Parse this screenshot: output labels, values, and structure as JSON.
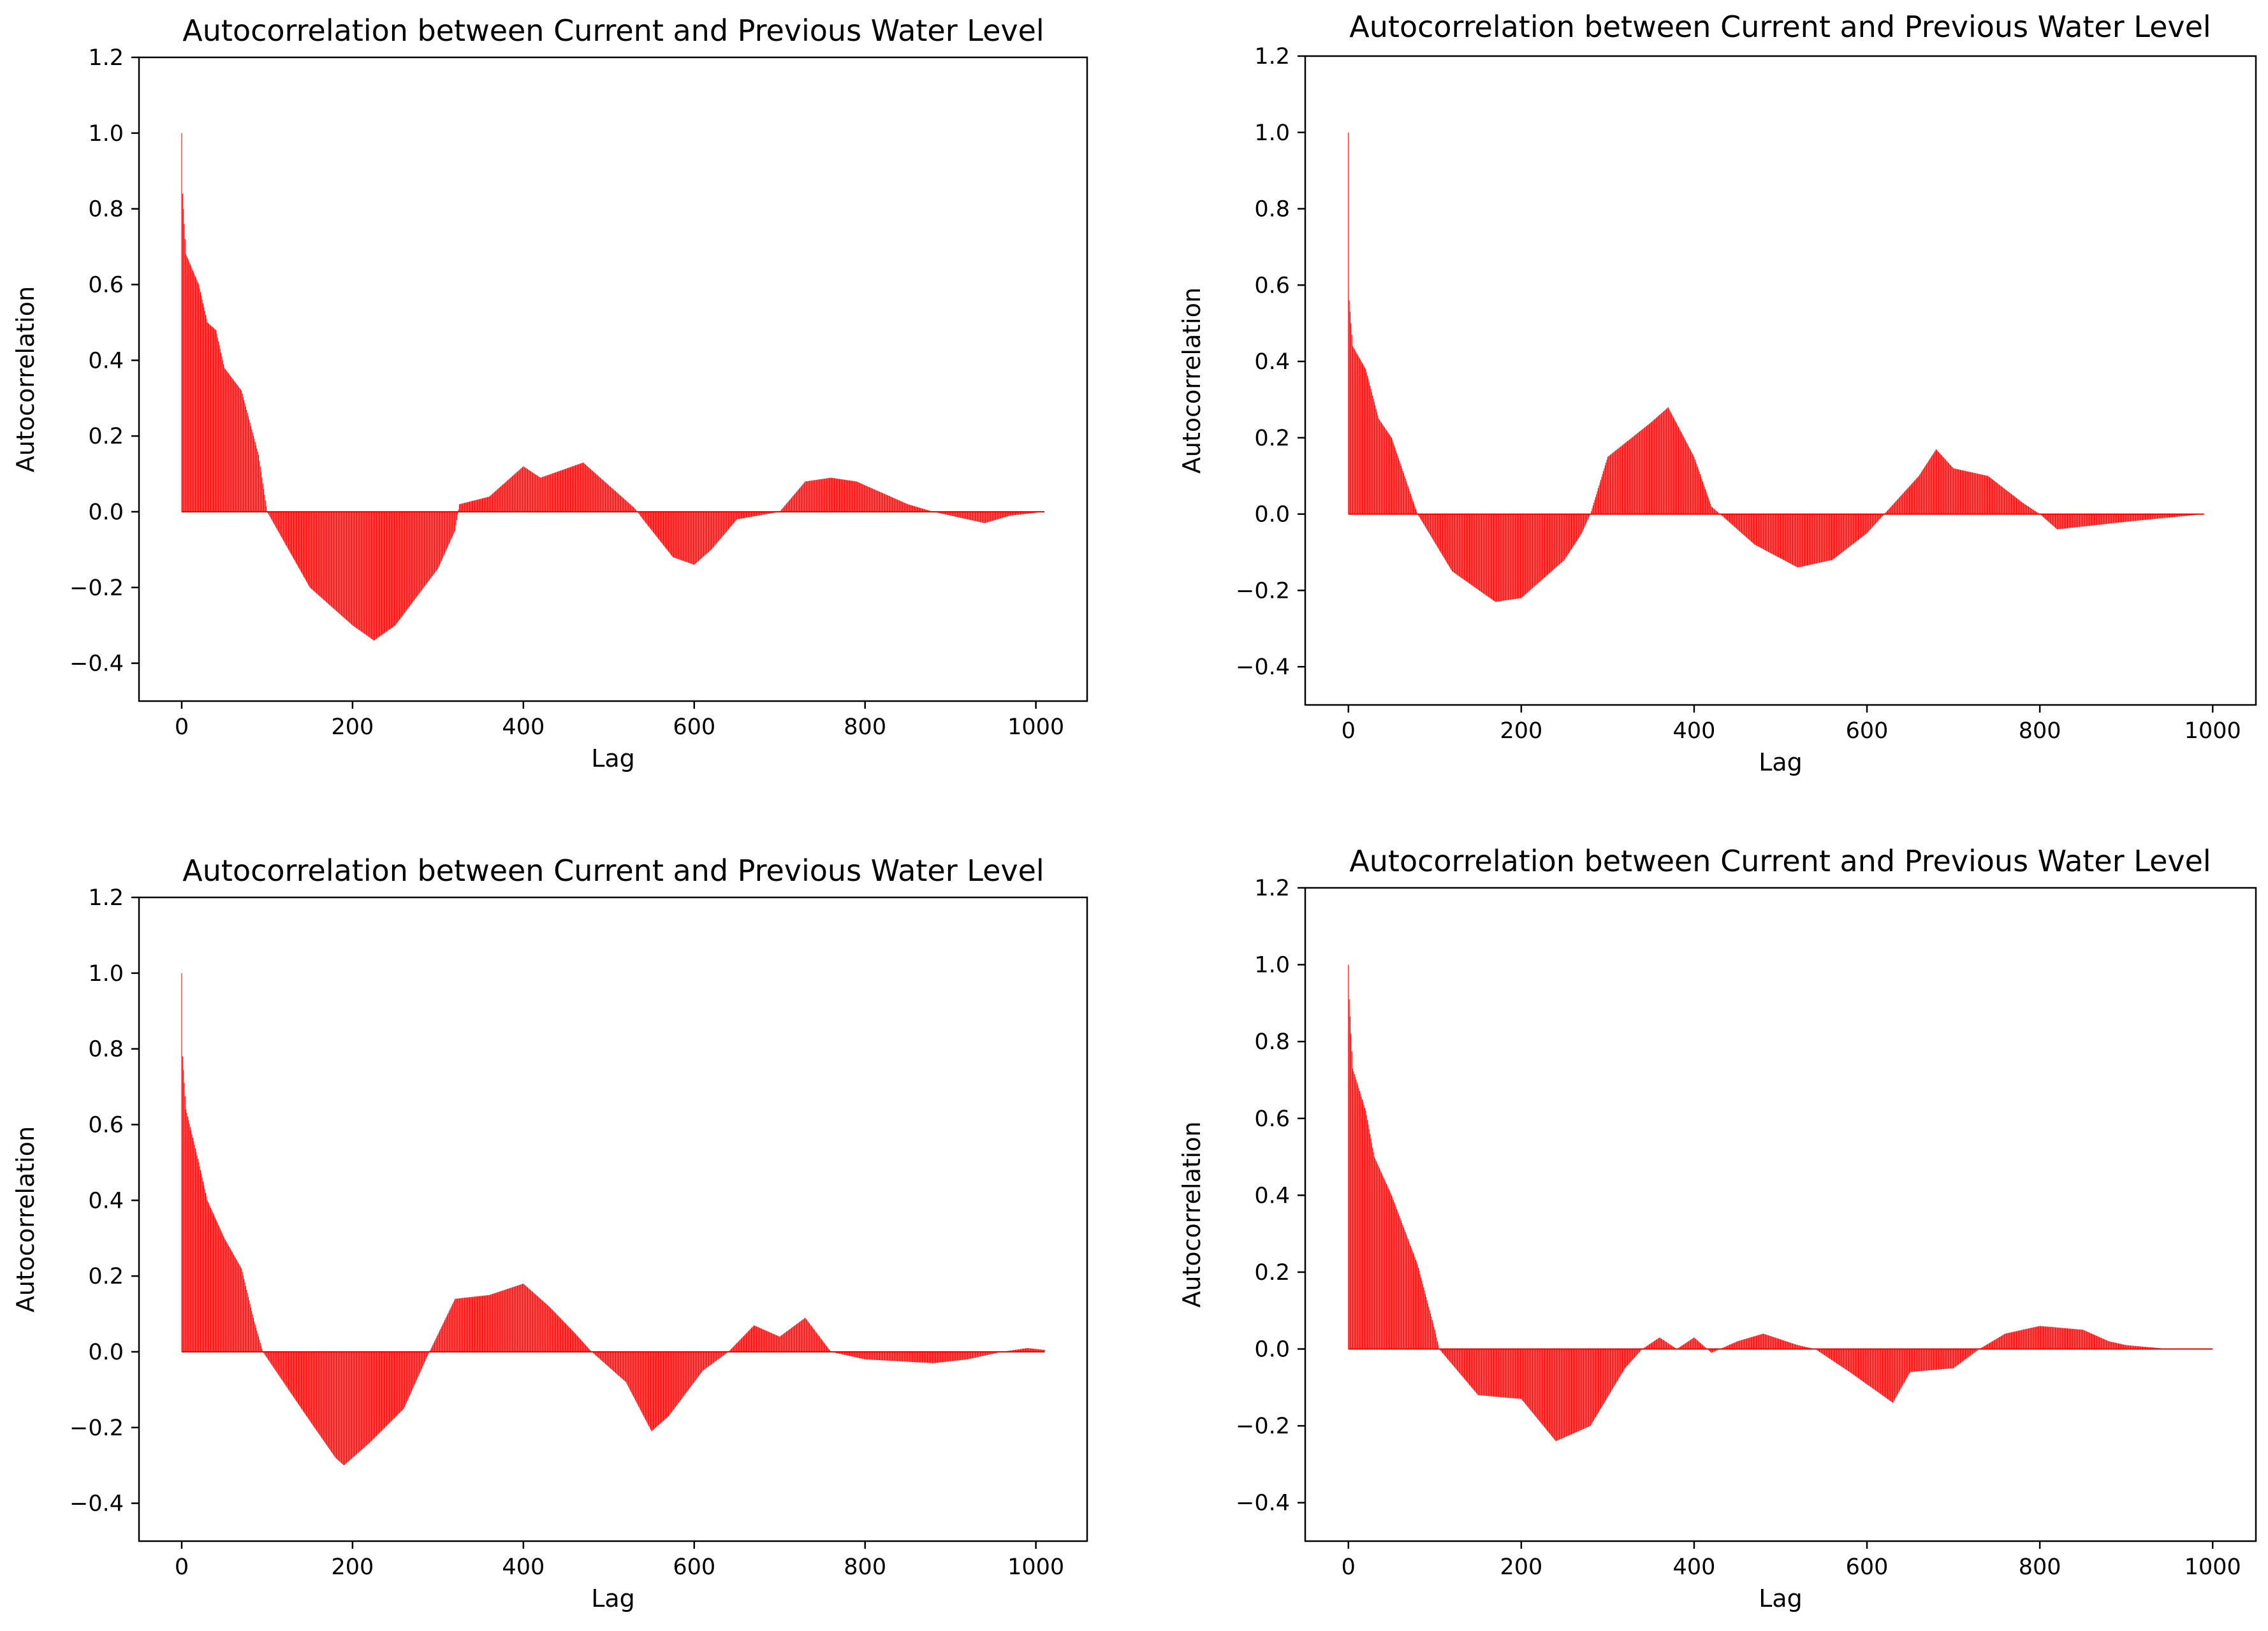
{
  "chart_data": [
    {
      "type": "bar",
      "title": "Autocorrelation between Current and Previous Water Level",
      "xlabel": "Lag",
      "ylabel": "Autocorrelation",
      "xlim": [
        -50,
        1060
      ],
      "ylim": [
        -0.5,
        1.2
      ],
      "xticks": [
        0,
        200,
        400,
        600,
        800,
        1000
      ],
      "yticks": [
        -0.4,
        -0.2,
        0.0,
        0.2,
        0.4,
        0.6,
        0.8,
        1.0,
        1.2
      ],
      "ytick_labels": [
        "−0.4",
        "−0.2",
        "0.0",
        "0.2",
        "0.4",
        "0.6",
        "0.8",
        "1.0",
        "1.2"
      ],
      "bar_color": "#ff0000",
      "max_lag": 1010,
      "profile": [
        [
          0,
          1.0
        ],
        [
          1,
          0.84
        ],
        [
          5,
          0.68
        ],
        [
          20,
          0.6
        ],
        [
          30,
          0.5
        ],
        [
          40,
          0.48
        ],
        [
          50,
          0.38
        ],
        [
          70,
          0.32
        ],
        [
          90,
          0.15
        ],
        [
          100,
          0.0
        ],
        [
          150,
          -0.2
        ],
        [
          200,
          -0.3
        ],
        [
          225,
          -0.34
        ],
        [
          250,
          -0.3
        ],
        [
          300,
          -0.15
        ],
        [
          320,
          -0.05
        ],
        [
          325,
          0.02
        ],
        [
          360,
          0.04
        ],
        [
          400,
          0.12
        ],
        [
          420,
          0.09
        ],
        [
          470,
          0.13
        ],
        [
          500,
          0.07
        ],
        [
          530,
          0.01
        ],
        [
          540,
          -0.02
        ],
        [
          575,
          -0.12
        ],
        [
          600,
          -0.14
        ],
        [
          620,
          -0.1
        ],
        [
          650,
          -0.02
        ],
        [
          700,
          0.0
        ],
        [
          730,
          0.08
        ],
        [
          760,
          0.09
        ],
        [
          790,
          0.08
        ],
        [
          850,
          0.02
        ],
        [
          880,
          0.0
        ],
        [
          940,
          -0.03
        ],
        [
          970,
          -0.01
        ],
        [
          1010,
          0.0
        ]
      ]
    },
    {
      "type": "bar",
      "title": "Autocorrelation between Current and Previous Water Level",
      "xlabel": "Lag",
      "ylabel": "Autocorrelation",
      "xlim": [
        -50,
        1050
      ],
      "ylim": [
        -0.5,
        1.2
      ],
      "xticks": [
        0,
        200,
        400,
        600,
        800,
        1000
      ],
      "yticks": [
        -0.4,
        -0.2,
        0.0,
        0.2,
        0.4,
        0.6,
        0.8,
        1.0,
        1.2
      ],
      "ytick_labels": [
        "−0.4",
        "−0.2",
        "0.0",
        "0.2",
        "0.4",
        "0.6",
        "0.8",
        "1.0",
        "1.2"
      ],
      "bar_color": "#ff0000",
      "max_lag": 990,
      "profile": [
        [
          0,
          1.0
        ],
        [
          1,
          0.56
        ],
        [
          5,
          0.44
        ],
        [
          20,
          0.38
        ],
        [
          35,
          0.25
        ],
        [
          50,
          0.2
        ],
        [
          65,
          0.1
        ],
        [
          80,
          0.0
        ],
        [
          120,
          -0.15
        ],
        [
          170,
          -0.23
        ],
        [
          200,
          -0.22
        ],
        [
          250,
          -0.12
        ],
        [
          270,
          -0.05
        ],
        [
          280,
          0.0
        ],
        [
          300,
          0.15
        ],
        [
          350,
          0.24
        ],
        [
          370,
          0.28
        ],
        [
          400,
          0.15
        ],
        [
          420,
          0.02
        ],
        [
          430,
          0.0
        ],
        [
          470,
          -0.08
        ],
        [
          520,
          -0.14
        ],
        [
          560,
          -0.12
        ],
        [
          600,
          -0.05
        ],
        [
          620,
          0.0
        ],
        [
          660,
          0.1
        ],
        [
          680,
          0.17
        ],
        [
          700,
          0.12
        ],
        [
          740,
          0.1
        ],
        [
          780,
          0.03
        ],
        [
          800,
          0.0
        ],
        [
          820,
          -0.04
        ],
        [
          900,
          -0.02
        ],
        [
          990,
          0.0
        ]
      ]
    },
    {
      "type": "bar",
      "title": "Autocorrelation between Current and Previous Water Level",
      "xlabel": "Lag",
      "ylabel": "Autocorrelation",
      "xlim": [
        -50,
        1060
      ],
      "ylim": [
        -0.5,
        1.2
      ],
      "xticks": [
        0,
        200,
        400,
        600,
        800,
        1000
      ],
      "yticks": [
        -0.4,
        -0.2,
        0.0,
        0.2,
        0.4,
        0.6,
        0.8,
        1.0,
        1.2
      ],
      "ytick_labels": [
        "−0.4",
        "−0.2",
        "0.0",
        "0.2",
        "0.4",
        "0.6",
        "0.8",
        "1.0",
        "1.2"
      ],
      "bar_color": "#ff0000",
      "max_lag": 1010,
      "profile": [
        [
          0,
          1.0
        ],
        [
          1,
          0.78
        ],
        [
          5,
          0.64
        ],
        [
          20,
          0.5
        ],
        [
          30,
          0.4
        ],
        [
          50,
          0.3
        ],
        [
          70,
          0.22
        ],
        [
          85,
          0.08
        ],
        [
          95,
          0.0
        ],
        [
          140,
          -0.15
        ],
        [
          180,
          -0.28
        ],
        [
          190,
          -0.3
        ],
        [
          220,
          -0.24
        ],
        [
          260,
          -0.15
        ],
        [
          290,
          0.0
        ],
        [
          320,
          0.14
        ],
        [
          360,
          0.15
        ],
        [
          400,
          0.18
        ],
        [
          430,
          0.12
        ],
        [
          460,
          0.05
        ],
        [
          480,
          0.0
        ],
        [
          520,
          -0.08
        ],
        [
          550,
          -0.21
        ],
        [
          570,
          -0.17
        ],
        [
          610,
          -0.05
        ],
        [
          640,
          0.0
        ],
        [
          670,
          0.07
        ],
        [
          700,
          0.04
        ],
        [
          730,
          0.09
        ],
        [
          760,
          0.0
        ],
        [
          800,
          -0.02
        ],
        [
          880,
          -0.03
        ],
        [
          920,
          -0.02
        ],
        [
          960,
          0.0
        ],
        [
          990,
          0.01
        ],
        [
          1010,
          0.005
        ]
      ]
    },
    {
      "type": "bar",
      "title": "Autocorrelation between Current and Previous Water Level",
      "xlabel": "Lag",
      "ylabel": "Autocorrelation",
      "xlim": [
        -50,
        1050
      ],
      "ylim": [
        -0.5,
        1.2
      ],
      "xticks": [
        0,
        200,
        400,
        600,
        800,
        1000
      ],
      "yticks": [
        -0.4,
        -0.2,
        0.0,
        0.2,
        0.4,
        0.6,
        0.8,
        1.0,
        1.2
      ],
      "ytick_labels": [
        "−0.4",
        "−0.2",
        "0.0",
        "0.2",
        "0.4",
        "0.6",
        "0.8",
        "1.0",
        "1.2"
      ],
      "bar_color": "#ff0000",
      "max_lag": 1000,
      "profile": [
        [
          0,
          1.0
        ],
        [
          1,
          0.91
        ],
        [
          5,
          0.73
        ],
        [
          20,
          0.62
        ],
        [
          30,
          0.5
        ],
        [
          50,
          0.4
        ],
        [
          80,
          0.22
        ],
        [
          100,
          0.05
        ],
        [
          105,
          0.0
        ],
        [
          150,
          -0.12
        ],
        [
          200,
          -0.13
        ],
        [
          240,
          -0.24
        ],
        [
          280,
          -0.2
        ],
        [
          320,
          -0.05
        ],
        [
          340,
          0.0
        ],
        [
          360,
          0.03
        ],
        [
          380,
          0.0
        ],
        [
          400,
          0.03
        ],
        [
          420,
          -0.01
        ],
        [
          450,
          0.02
        ],
        [
          480,
          0.04
        ],
        [
          520,
          0.01
        ],
        [
          540,
          0.0
        ],
        [
          580,
          -0.06
        ],
        [
          630,
          -0.14
        ],
        [
          650,
          -0.06
        ],
        [
          700,
          -0.05
        ],
        [
          730,
          0.0
        ],
        [
          760,
          0.04
        ],
        [
          800,
          0.06
        ],
        [
          850,
          0.05
        ],
        [
          880,
          0.02
        ],
        [
          900,
          0.01
        ],
        [
          950,
          0.0
        ],
        [
          1000,
          0.0
        ]
      ]
    }
  ]
}
